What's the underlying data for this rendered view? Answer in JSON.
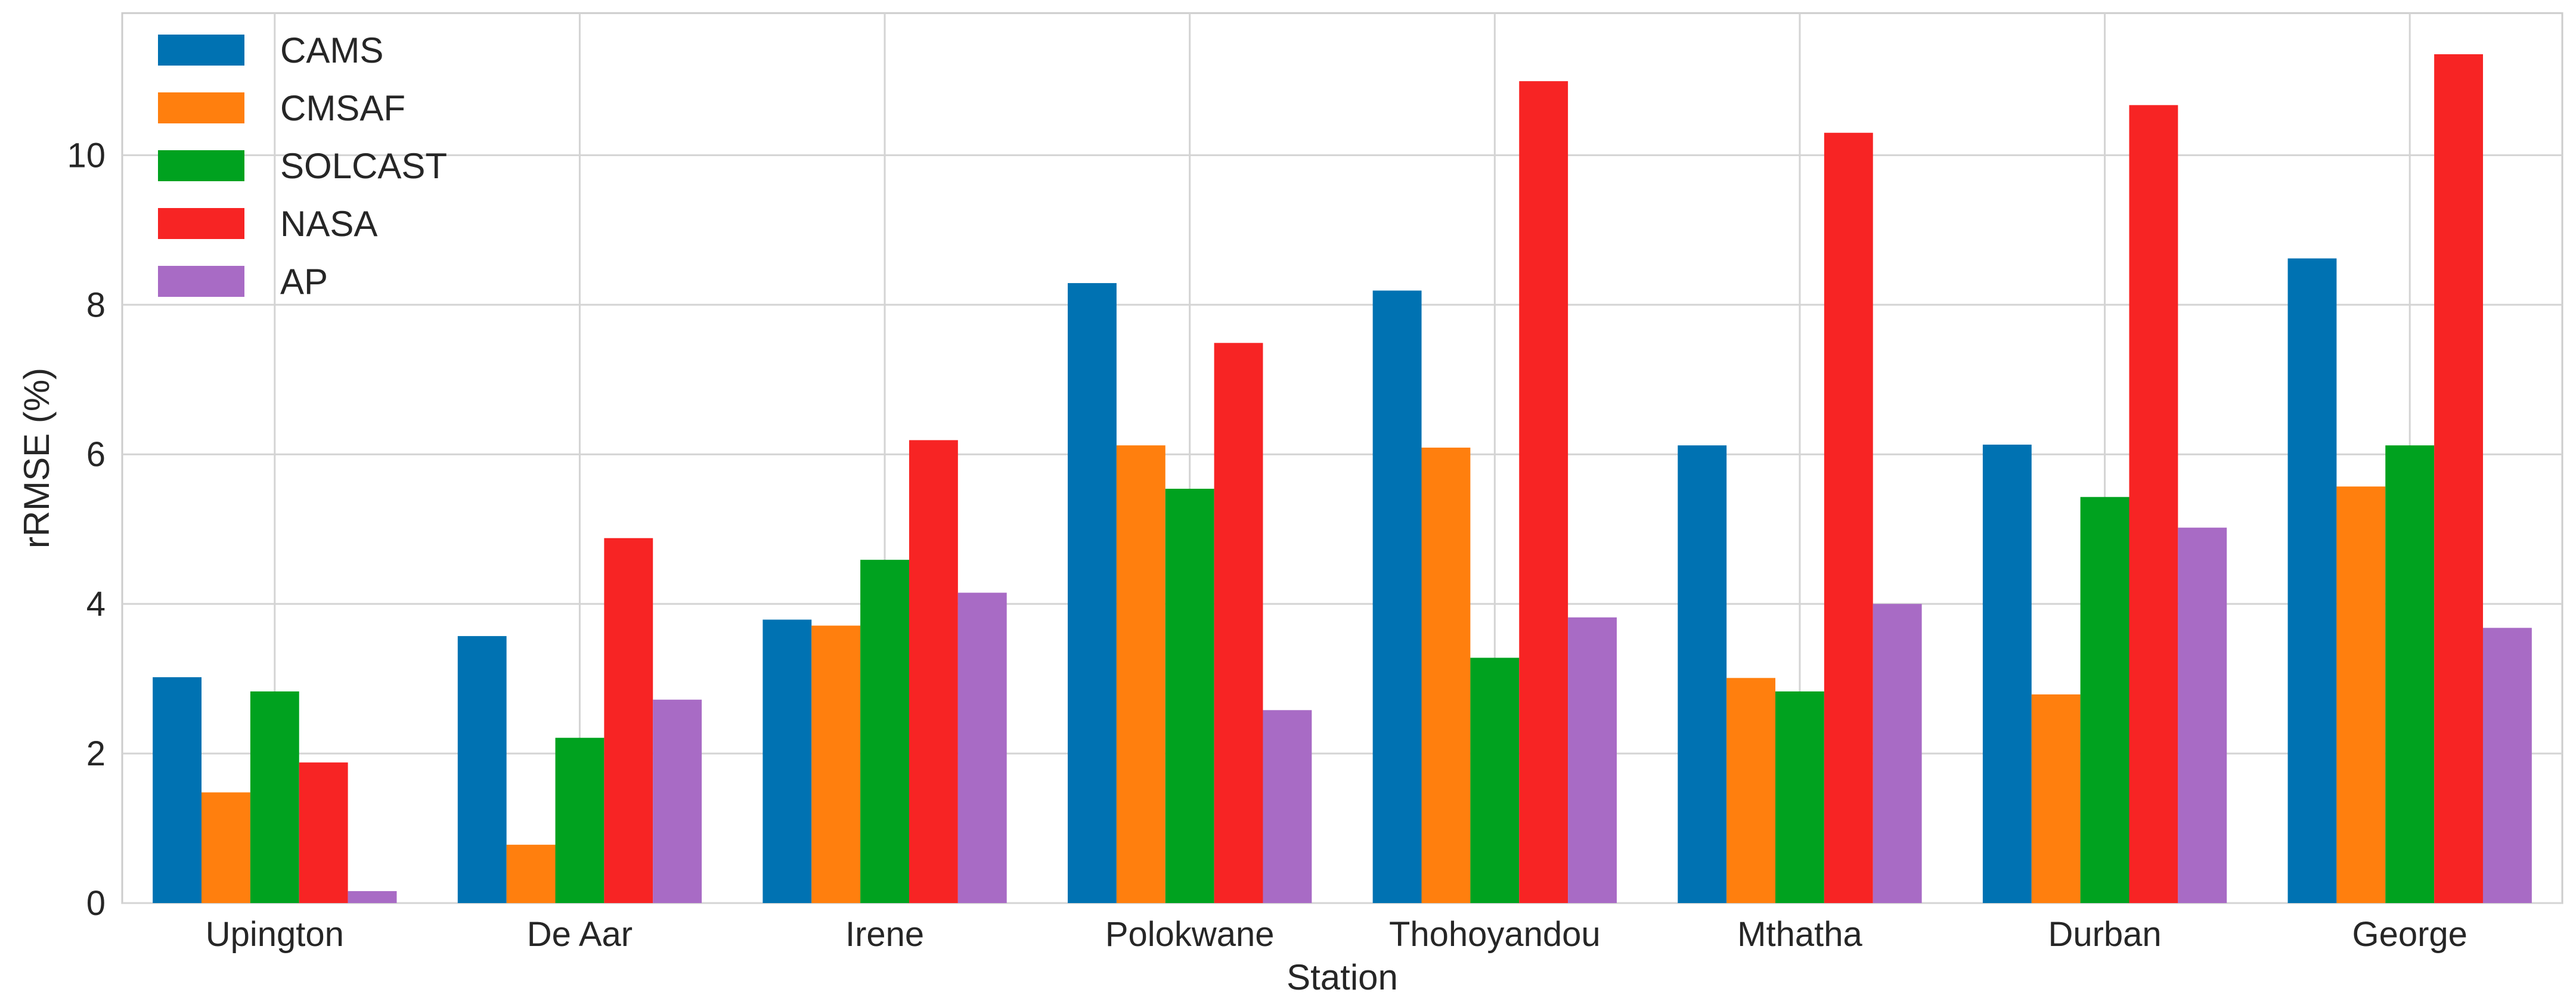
{
  "chart_data": {
    "type": "bar",
    "title": "",
    "xlabel": "Station",
    "ylabel": "rRMSE (%)",
    "ylim": [
      0,
      11.9
    ],
    "yticks": [
      0,
      2,
      4,
      6,
      8,
      10
    ],
    "grid": true,
    "legend_position": "top-left",
    "categories": [
      "Upington",
      "De Aar",
      "Irene",
      "Polokwane",
      "Thohoyandou",
      "Mthatha",
      "Durban",
      "George"
    ],
    "series": [
      {
        "name": "CAMS",
        "color": "#0072b2",
        "values": [
          3.02,
          3.57,
          3.79,
          8.29,
          8.19,
          6.12,
          6.13,
          8.62
        ]
      },
      {
        "name": "CMSAF",
        "color": "#ff7f0e",
        "values": [
          1.48,
          0.78,
          3.71,
          6.12,
          6.09,
          3.01,
          2.79,
          5.57
        ]
      },
      {
        "name": "SOLCAST",
        "color": "#00a21f",
        "values": [
          2.83,
          2.21,
          4.59,
          5.54,
          3.28,
          2.83,
          5.43,
          6.12
        ]
      },
      {
        "name": "NASA",
        "color": "#f72424",
        "values": [
          1.88,
          4.88,
          6.19,
          7.49,
          10.99,
          10.3,
          10.67,
          11.35
        ]
      },
      {
        "name": "AP",
        "color": "#a86bc5",
        "values": [
          0.16,
          2.72,
          4.15,
          2.58,
          3.82,
          4.0,
          5.02,
          3.68
        ]
      }
    ]
  }
}
